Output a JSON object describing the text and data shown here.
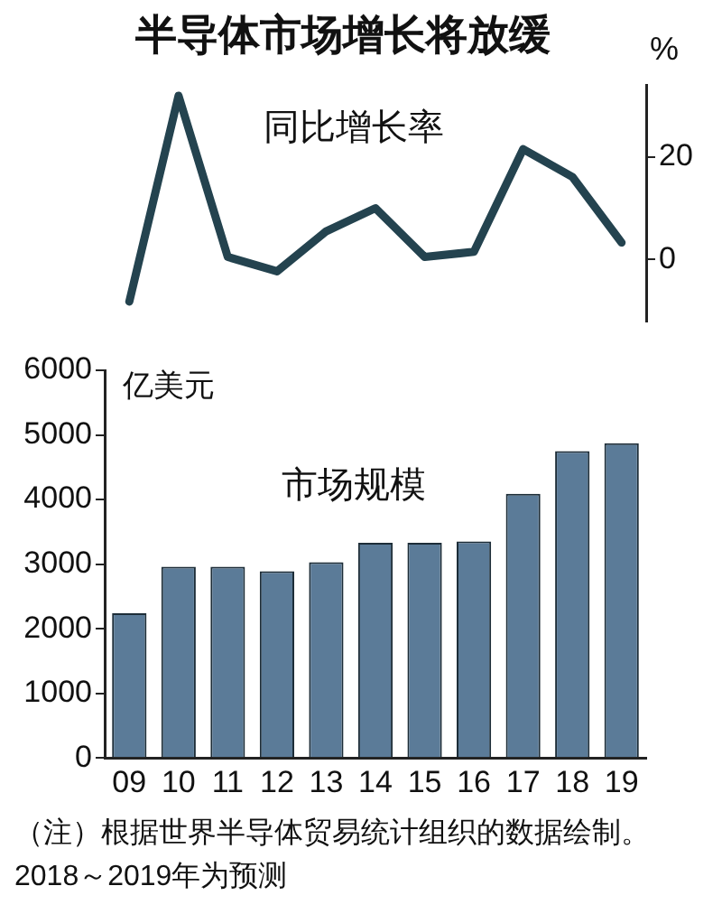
{
  "chart_data": [
    {
      "type": "line",
      "title": "半导体市场增长将放缓",
      "y2label": "%",
      "annotations": [
        "同比增长率"
      ],
      "categories": [
        "09",
        "10",
        "11",
        "12",
        "13",
        "14",
        "15",
        "16",
        "17",
        "18",
        "19"
      ],
      "series": [
        {
          "color": "#24434f",
          "axis": "y2",
          "values": [
            -8.2,
            31.9,
            0.5,
            -2.3,
            5.5,
            10,
            0.5,
            1.5,
            21.5,
            16.1,
            3.3
          ]
        }
      ],
      "y2lim": [
        -12,
        34
      ],
      "y2ticks": [
        0,
        20
      ],
      "tick_labels": "y",
      "marker": "none",
      "line_style": "solid"
    },
    {
      "type": "bar",
      "ylabel": "亿美元",
      "annotations": [
        "市场规模",
        "（注）根据世界半导体贸易统计组织的数据绘制。",
        "2018～2019年为预测"
      ],
      "categories": [
        "09",
        "10",
        "11",
        "12",
        "13",
        "14",
        "15",
        "16",
        "17",
        "18",
        "19"
      ],
      "values": [
        2240,
        2960,
        2960,
        2890,
        3030,
        3330,
        3330,
        3350,
        4090,
        4750,
        4870
      ],
      "color": "#5b7b98",
      "ylim": [
        0,
        6000
      ],
      "yticks": [
        0,
        1000,
        2000,
        3000,
        4000,
        5000,
        6000
      ]
    }
  ]
}
